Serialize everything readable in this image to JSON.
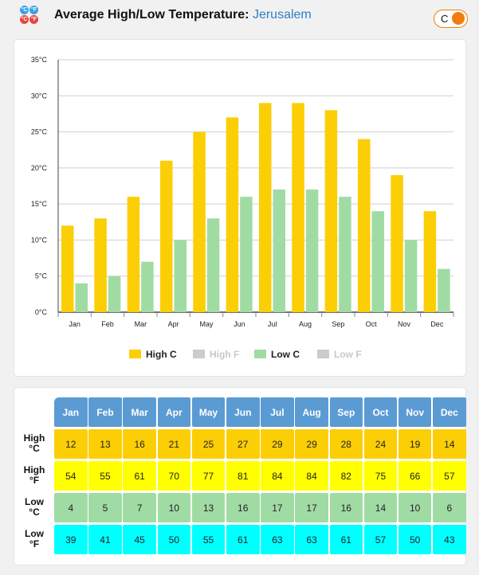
{
  "header": {
    "title": "Average High/Low Temperature:",
    "city": "Jerusalem",
    "unit_toggle_label": "C",
    "logo_glyphs": [
      "°C",
      "°F",
      "°C",
      "°F"
    ]
  },
  "chart_data": {
    "type": "bar",
    "categories": [
      "Jan",
      "Feb",
      "Mar",
      "Apr",
      "May",
      "Jun",
      "Jul",
      "Aug",
      "Sep",
      "Oct",
      "Nov",
      "Dec"
    ],
    "series": [
      {
        "name": "High C",
        "values": [
          12,
          13,
          16,
          21,
          25,
          27,
          29,
          29,
          28,
          24,
          19,
          14
        ],
        "color": "#fcce05",
        "enabled": true
      },
      {
        "name": "Low C",
        "values": [
          4,
          5,
          7,
          10,
          13,
          16,
          17,
          17,
          16,
          14,
          10,
          6
        ],
        "color": "#a1dba4",
        "enabled": true
      }
    ],
    "legend": [
      {
        "name": "High C",
        "color": "#fcce05",
        "enabled": true
      },
      {
        "name": "High F",
        "color": "#cccccc",
        "enabled": false
      },
      {
        "name": "Low C",
        "color": "#a1dba4",
        "enabled": true
      },
      {
        "name": "Low F",
        "color": "#cccccc",
        "enabled": false
      }
    ],
    "yticks": [
      "0°C",
      "5°C",
      "10°C",
      "15°C",
      "20°C",
      "25°C",
      "30°C",
      "35°C"
    ],
    "ylim": [
      0,
      35
    ],
    "legend_position": "bottom-center"
  },
  "table": {
    "months": [
      "Jan",
      "Feb",
      "Mar",
      "Apr",
      "May",
      "Jun",
      "Jul",
      "Aug",
      "Sep",
      "Oct",
      "Nov",
      "Dec"
    ],
    "rows": [
      {
        "label_top": "High",
        "label_bottom": "°C",
        "cls": "hc",
        "values": [
          "12",
          "13",
          "16",
          "21",
          "25",
          "27",
          "29",
          "29",
          "28",
          "24",
          "19",
          "14"
        ]
      },
      {
        "label_top": "High",
        "label_bottom": "°F",
        "cls": "hf",
        "values": [
          "54",
          "55",
          "61",
          "70",
          "77",
          "81",
          "84",
          "84",
          "82",
          "75",
          "66",
          "57"
        ]
      },
      {
        "label_top": "Low",
        "label_bottom": "°C",
        "cls": "lc",
        "values": [
          "4",
          "5",
          "7",
          "10",
          "13",
          "16",
          "17",
          "17",
          "16",
          "14",
          "10",
          "6"
        ]
      },
      {
        "label_top": "Low",
        "label_bottom": "°F",
        "cls": "lf",
        "values": [
          "39",
          "41",
          "45",
          "50",
          "55",
          "61",
          "63",
          "63",
          "61",
          "57",
          "50",
          "43"
        ]
      }
    ]
  }
}
